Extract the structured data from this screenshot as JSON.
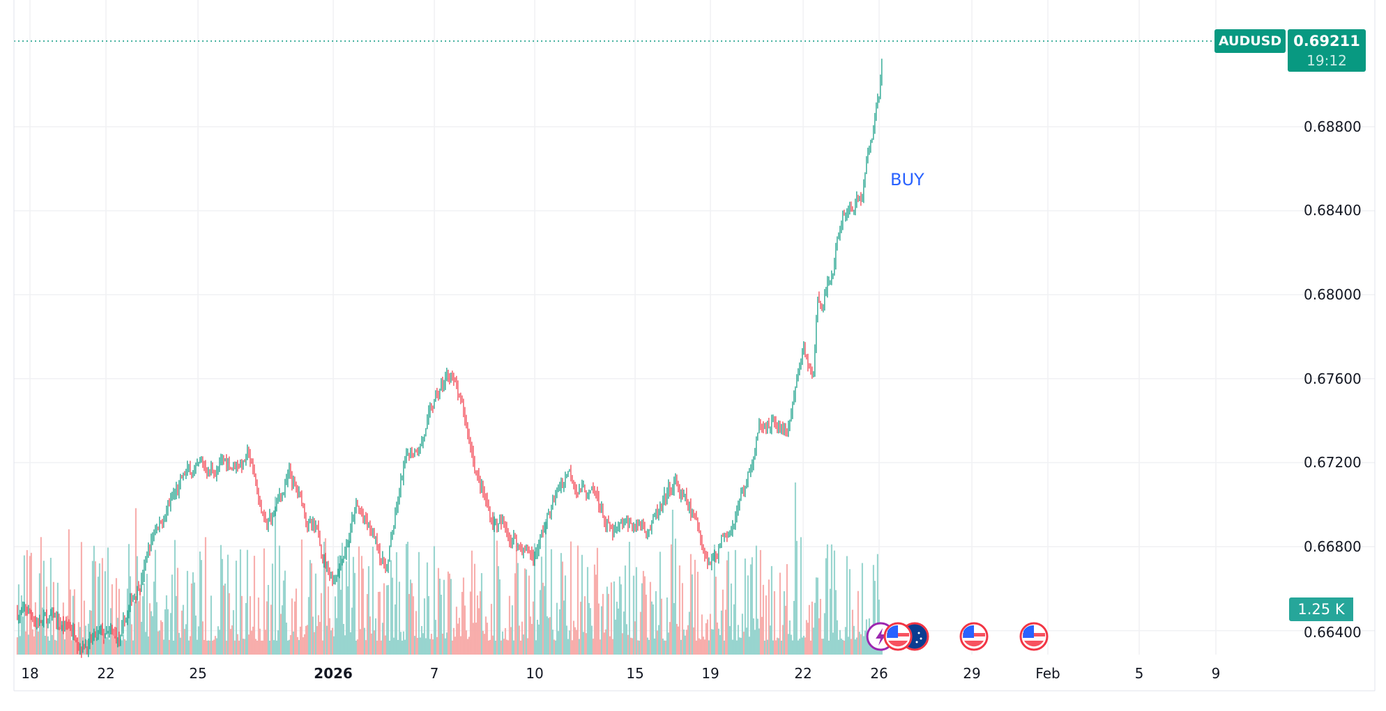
{
  "symbol": "AUDUSD",
  "last_price": "0.69211",
  "countdown": "19:12",
  "volume_label": "1.25 K",
  "annotation": "BUY",
  "colors": {
    "up": "#089981",
    "down": "#f23645",
    "vol_up": "#92d2cc",
    "vol_down": "#f7a9a7",
    "annotation": "#2962ff",
    "price_line": "#089981"
  },
  "event_icons": [
    {
      "icon": "lightning-event-icon",
      "date": "Jan 26"
    },
    {
      "icon": "us-flag-icon",
      "date": "Jan 26"
    },
    {
      "icon": "au-flag-icon",
      "date": "Jan 26"
    },
    {
      "icon": "us-flag-icon",
      "date": "Jan 29"
    },
    {
      "icon": "us-flag-icon",
      "date": "Feb 1"
    }
  ],
  "chart_data": {
    "type": "candlestick",
    "price_axis": {
      "ticks": [
        "0.68800",
        "0.68400",
        "0.68000",
        "0.67600",
        "0.67200",
        "0.66800",
        "0.66400"
      ],
      "range": [
        0.6595,
        0.6935
      ]
    },
    "time_axis": {
      "ticks": [
        "18",
        "22",
        "25",
        "2026",
        "7",
        "10",
        "15",
        "19",
        "22",
        "26",
        "29",
        "Feb",
        "5",
        "9"
      ],
      "bold": [
        "2026"
      ]
    },
    "grid": true,
    "price_path": [
      [
        "2025-12-17T08",
        0.6649
      ],
      [
        "2025-12-22T11",
        0.6632
      ],
      [
        "2025-12-23T15",
        0.6691
      ],
      [
        "2025-12-24T15",
        0.6712
      ],
      [
        "2025-12-27T15",
        0.6723
      ],
      [
        "2025-12-28T13",
        0.6687
      ],
      [
        "2025-12-29T17",
        0.6712
      ],
      [
        "2026-01-01T00",
        0.6666
      ],
      [
        "2026-01-02T08",
        0.6699
      ],
      [
        "2026-01-04T04",
        0.667
      ],
      [
        "2026-01-05T05",
        0.6716
      ],
      [
        "2026-01-07T12",
        0.6763
      ],
      [
        "2026-01-07T20",
        0.6742
      ],
      [
        "2026-01-08T15",
        0.6695
      ],
      [
        "2026-01-09T23",
        0.6676
      ],
      [
        "2026-01-11T16",
        0.6718
      ],
      [
        "2026-01-13T05",
        0.6699
      ],
      [
        "2026-01-13T21",
        0.6683
      ],
      [
        "2026-01-16T10",
        0.6695
      ],
      [
        "2026-01-17T03",
        0.6708
      ],
      [
        "2026-01-19T00",
        0.6674
      ],
      [
        "2026-01-20T04",
        0.6712
      ],
      [
        "2026-01-20T18",
        0.6742
      ],
      [
        "2026-01-21T11",
        0.6733
      ],
      [
        "2026-01-22T01",
        0.6771
      ],
      [
        "2026-01-22T12",
        0.6757
      ],
      [
        "2026-01-22T18",
        0.6793
      ],
      [
        "2026-01-23T11",
        0.6809
      ],
      [
        "2026-01-24T03",
        0.6841
      ],
      [
        "2026-01-25T02",
        0.6847
      ],
      [
        "2026-01-26T00",
        0.6898
      ],
      [
        "2026-01-26T03",
        0.69211
      ]
    ]
  }
}
